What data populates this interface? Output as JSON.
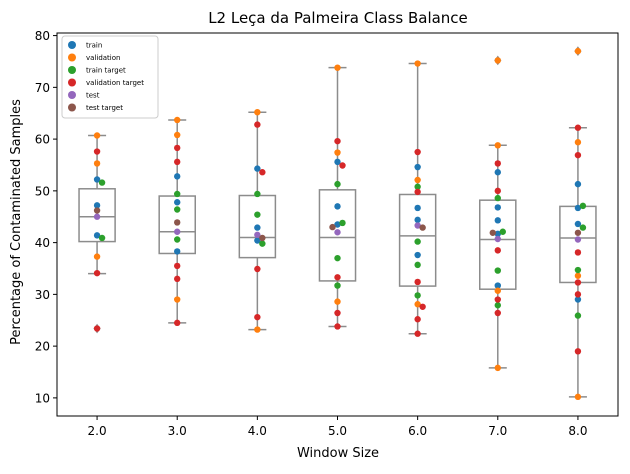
{
  "chart_data": {
    "type": "box",
    "title": "L2 Leça da Palmeira Class Balance",
    "xlabel": "Window Size",
    "ylabel": "Percentage of Contaminated Samples",
    "categories": [
      "2.0",
      "3.0",
      "4.0",
      "5.0",
      "6.0",
      "7.0",
      "8.0"
    ],
    "ylim": [
      6.5,
      80.5
    ],
    "yticks": [
      10,
      20,
      30,
      40,
      50,
      60,
      70,
      80
    ],
    "legend_position": "top-left",
    "colors": {
      "box_edge": "#8c8c8c",
      "train": "#1f77b4",
      "validation": "#ff7f0e",
      "train target": "#2ca02c",
      "validation target": "#d62728",
      "test": "#9467bd",
      "test target": "#8c564b"
    },
    "boxes": [
      {
        "category": "2.0",
        "q1": 40.2,
        "median": 45.0,
        "q3": 50.4,
        "whisker_low": 34.0,
        "whisker_high": 60.7,
        "fliers": [
          23.4
        ]
      },
      {
        "category": "3.0",
        "q1": 37.9,
        "median": 42.1,
        "q3": 49.0,
        "whisker_low": 24.5,
        "whisker_high": 63.7,
        "fliers": []
      },
      {
        "category": "4.0",
        "q1": 37.1,
        "median": 41.0,
        "q3": 49.1,
        "whisker_low": 23.2,
        "whisker_high": 65.2,
        "fliers": []
      },
      {
        "category": "5.0",
        "q1": 32.6,
        "median": 41.0,
        "q3": 50.2,
        "whisker_low": 23.8,
        "whisker_high": 73.8,
        "fliers": []
      },
      {
        "category": "6.0",
        "q1": 31.6,
        "median": 41.3,
        "q3": 49.3,
        "whisker_low": 22.4,
        "whisker_high": 74.6,
        "fliers": []
      },
      {
        "category": "7.0",
        "q1": 31.0,
        "median": 40.6,
        "q3": 48.2,
        "whisker_low": 15.8,
        "whisker_high": 58.8,
        "fliers": [
          75.2
        ]
      },
      {
        "category": "8.0",
        "q1": 32.3,
        "median": 40.9,
        "q3": 47.0,
        "whisker_low": 10.2,
        "whisker_high": 62.2,
        "fliers": [
          77.0
        ]
      }
    ],
    "series": [
      {
        "name": "train",
        "points": [
          {
            "x": "2.0",
            "y": 47.2
          },
          {
            "x": "2.0",
            "y": 41.4
          },
          {
            "x": "2.0",
            "y": 52.2
          },
          {
            "x": "3.0",
            "y": 52.8
          },
          {
            "x": "3.0",
            "y": 47.8
          },
          {
            "x": "3.0",
            "y": 38.3
          },
          {
            "x": "4.0",
            "y": 54.3
          },
          {
            "x": "4.0",
            "y": 42.9
          },
          {
            "x": "4.0",
            "y": 40.4
          },
          {
            "x": "5.0",
            "y": 55.6
          },
          {
            "x": "5.0",
            "y": 47.0
          },
          {
            "x": "5.0",
            "y": 43.5
          },
          {
            "x": "6.0",
            "y": 54.6
          },
          {
            "x": "6.0",
            "y": 46.7
          },
          {
            "x": "6.0",
            "y": 44.4
          },
          {
            "x": "6.0",
            "y": 37.6
          },
          {
            "x": "7.0",
            "y": 53.6
          },
          {
            "x": "7.0",
            "y": 46.8
          },
          {
            "x": "7.0",
            "y": 44.3
          },
          {
            "x": "7.0",
            "y": 41.7
          },
          {
            "x": "7.0",
            "y": 31.7
          },
          {
            "x": "8.0",
            "y": 51.3
          },
          {
            "x": "8.0",
            "y": 46.7
          },
          {
            "x": "8.0",
            "y": 43.6
          },
          {
            "x": "8.0",
            "y": 29.0
          }
        ]
      },
      {
        "name": "validation",
        "points": [
          {
            "x": "2.0",
            "y": 60.7
          },
          {
            "x": "2.0",
            "y": 55.3
          },
          {
            "x": "2.0",
            "y": 37.3
          },
          {
            "x": "3.0",
            "y": 63.7
          },
          {
            "x": "3.0",
            "y": 60.8
          },
          {
            "x": "3.0",
            "y": 29.0
          },
          {
            "x": "4.0",
            "y": 65.2
          },
          {
            "x": "4.0",
            "y": 23.2
          },
          {
            "x": "5.0",
            "y": 73.8
          },
          {
            "x": "5.0",
            "y": 57.4
          },
          {
            "x": "5.0",
            "y": 28.6
          },
          {
            "x": "6.0",
            "y": 74.6
          },
          {
            "x": "6.0",
            "y": 52.1
          },
          {
            "x": "6.0",
            "y": 28.1
          },
          {
            "x": "7.0",
            "y": 75.2
          },
          {
            "x": "7.0",
            "y": 58.8
          },
          {
            "x": "7.0",
            "y": 30.7
          },
          {
            "x": "7.0",
            "y": 15.8
          },
          {
            "x": "8.0",
            "y": 77.0
          },
          {
            "x": "8.0",
            "y": 59.4
          },
          {
            "x": "8.0",
            "y": 33.6
          },
          {
            "x": "8.0",
            "y": 10.2
          }
        ]
      },
      {
        "name": "train target",
        "points": [
          {
            "x": "2.0",
            "y": 51.6
          },
          {
            "x": "2.0",
            "y": 40.9
          },
          {
            "x": "3.0",
            "y": 49.4
          },
          {
            "x": "3.0",
            "y": 46.4
          },
          {
            "x": "3.0",
            "y": 40.6
          },
          {
            "x": "4.0",
            "y": 49.4
          },
          {
            "x": "4.0",
            "y": 45.4
          },
          {
            "x": "4.0",
            "y": 39.8
          },
          {
            "x": "5.0",
            "y": 51.3
          },
          {
            "x": "5.0",
            "y": 43.8
          },
          {
            "x": "5.0",
            "y": 37.0
          },
          {
            "x": "5.0",
            "y": 31.7
          },
          {
            "x": "6.0",
            "y": 50.8
          },
          {
            "x": "6.0",
            "y": 40.2
          },
          {
            "x": "6.0",
            "y": 35.7
          },
          {
            "x": "6.0",
            "y": 29.8
          },
          {
            "x": "7.0",
            "y": 48.6
          },
          {
            "x": "7.0",
            "y": 42.1
          },
          {
            "x": "7.0",
            "y": 34.6
          },
          {
            "x": "7.0",
            "y": 27.9
          },
          {
            "x": "8.0",
            "y": 47.1
          },
          {
            "x": "8.0",
            "y": 42.9
          },
          {
            "x": "8.0",
            "y": 34.7
          },
          {
            "x": "8.0",
            "y": 25.9
          }
        ]
      },
      {
        "name": "validation target",
        "points": [
          {
            "x": "2.0",
            "y": 57.6
          },
          {
            "x": "2.0",
            "y": 34.1
          },
          {
            "x": "2.0",
            "y": 23.4
          },
          {
            "x": "3.0",
            "y": 58.3
          },
          {
            "x": "3.0",
            "y": 55.6
          },
          {
            "x": "3.0",
            "y": 35.5
          },
          {
            "x": "3.0",
            "y": 33.0
          },
          {
            "x": "3.0",
            "y": 24.5
          },
          {
            "x": "4.0",
            "y": 62.8
          },
          {
            "x": "4.0",
            "y": 53.6
          },
          {
            "x": "4.0",
            "y": 34.9
          },
          {
            "x": "4.0",
            "y": 25.6
          },
          {
            "x": "5.0",
            "y": 59.6
          },
          {
            "x": "5.0",
            "y": 54.9
          },
          {
            "x": "5.0",
            "y": 33.3
          },
          {
            "x": "5.0",
            "y": 26.4
          },
          {
            "x": "5.0",
            "y": 23.8
          },
          {
            "x": "6.0",
            "y": 57.5
          },
          {
            "x": "6.0",
            "y": 49.8
          },
          {
            "x": "6.0",
            "y": 32.4
          },
          {
            "x": "6.0",
            "y": 27.6
          },
          {
            "x": "6.0",
            "y": 25.2
          },
          {
            "x": "6.0",
            "y": 22.4
          },
          {
            "x": "7.0",
            "y": 55.3
          },
          {
            "x": "7.0",
            "y": 50.0
          },
          {
            "x": "7.0",
            "y": 38.5
          },
          {
            "x": "7.0",
            "y": 29.0
          },
          {
            "x": "7.0",
            "y": 26.4
          },
          {
            "x": "8.0",
            "y": 62.2
          },
          {
            "x": "8.0",
            "y": 56.9
          },
          {
            "x": "8.0",
            "y": 38.1
          },
          {
            "x": "8.0",
            "y": 32.3
          },
          {
            "x": "8.0",
            "y": 30.0
          },
          {
            "x": "8.0",
            "y": 19.0
          }
        ]
      },
      {
        "name": "test",
        "points": [
          {
            "x": "2.0",
            "y": 45.0
          },
          {
            "x": "3.0",
            "y": 42.1
          },
          {
            "x": "4.0",
            "y": 41.5
          },
          {
            "x": "5.0",
            "y": 42.0
          },
          {
            "x": "6.0",
            "y": 43.3
          },
          {
            "x": "7.0",
            "y": 40.7
          },
          {
            "x": "8.0",
            "y": 40.6
          }
        ]
      },
      {
        "name": "test target",
        "points": [
          {
            "x": "2.0",
            "y": 46.2
          },
          {
            "x": "3.0",
            "y": 43.9
          },
          {
            "x": "4.0",
            "y": 40.9
          },
          {
            "x": "5.0",
            "y": 43.0
          },
          {
            "x": "6.0",
            "y": 42.9
          },
          {
            "x": "7.0",
            "y": 41.9
          },
          {
            "x": "8.0",
            "y": 41.9
          }
        ]
      }
    ]
  }
}
